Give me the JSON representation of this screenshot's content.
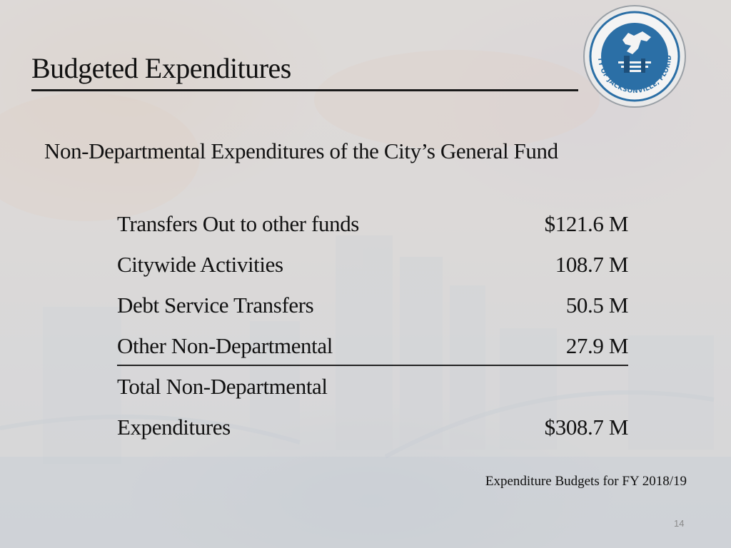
{
  "slide": {
    "title": "Budgeted Expenditures",
    "subtitle": "Non-Departmental Expenditures of the City’s General Fund",
    "items": [
      {
        "label": "Transfers Out to other funds",
        "amount": "$121.6 M"
      },
      {
        "label": "Citywide Activities",
        "amount": "108.7 M"
      },
      {
        "label": "Debt Service Transfers",
        "amount": "50.5 M"
      },
      {
        "label": "Other Non-Departmental",
        "amount": "27.9 M"
      }
    ],
    "total": {
      "label_line1": "Total Non-Departmental",
      "label_line2": "Expenditures",
      "amount": "$308.7 M"
    },
    "source_note": "Expenditure Budgets for FY 2018/19",
    "page_number": "14"
  },
  "seal": {
    "icon": "city-seal-icon",
    "text": "CITY OF JACKSONVILLE, FLORIDA"
  },
  "colors": {
    "seal_blue": "#2b6fa6",
    "seal_ring": "#f4f4f4",
    "text": "#111111",
    "page_number": "#8a8a8a"
  }
}
